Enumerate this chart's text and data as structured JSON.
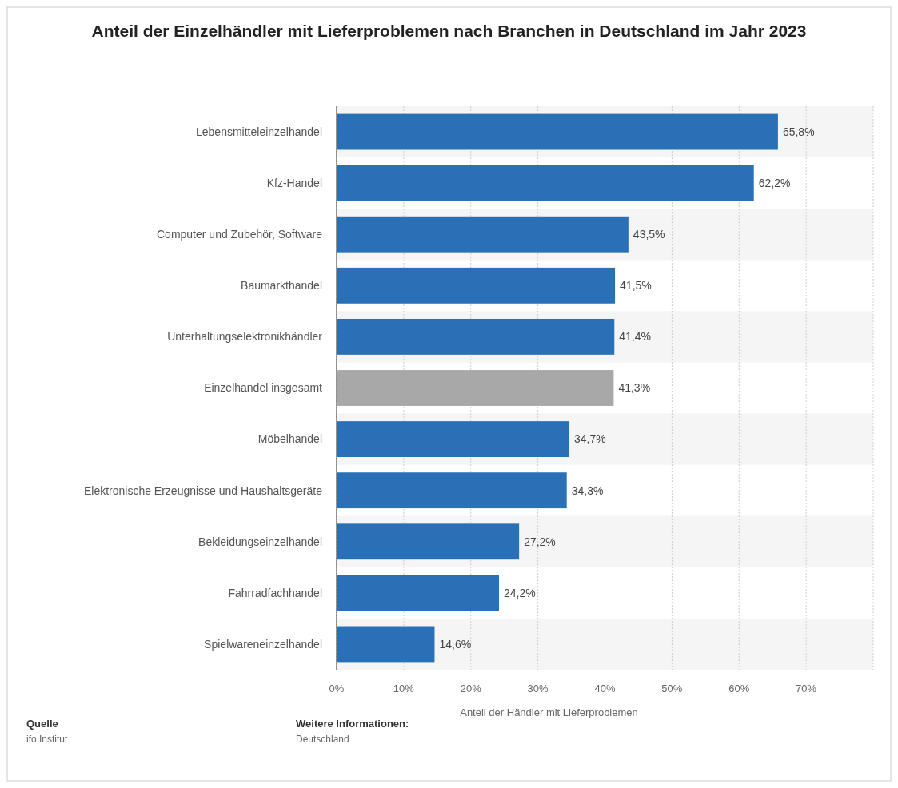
{
  "chart_data": {
    "type": "bar",
    "orientation": "horizontal",
    "title": "Anteil der Einzelhändler mit Lieferproblemen nach Branchen in Deutschland im Jahr 2023",
    "xlabel": "Anteil der Händler mit Lieferproblemen",
    "categories": [
      "Lebensmitteleinzelhandel",
      "Kfz-Handel",
      "Computer und Zubehör, Software",
      "Baumarkthandel",
      "Unterhaltungselektronikhändler",
      "Einzelhandel insgesamt",
      "Möbelhandel",
      "Elektronische Erzeugnisse und Haushaltsgeräte",
      "Bekleidungseinzelhandel",
      "Fahrradfachhandel",
      "Spielwareneinzelhandel"
    ],
    "values": [
      65.8,
      62.2,
      43.5,
      41.5,
      41.4,
      41.3,
      34.7,
      34.3,
      27.2,
      24.2,
      14.6
    ],
    "value_labels": [
      "65,8%",
      "62,2%",
      "43,5%",
      "41,5%",
      "41,4%",
      "41,3%",
      "34,7%",
      "34,3%",
      "27,2%",
      "24,2%",
      "14,6%"
    ],
    "colors": [
      "#2970b7",
      "#2970b7",
      "#2970b7",
      "#2970b7",
      "#2970b7",
      "#a8a8a8",
      "#2970b7",
      "#2970b7",
      "#2970b7",
      "#2970b7",
      "#2970b7"
    ],
    "xlim": [
      0,
      80
    ],
    "xticks": [
      {
        "value": 0,
        "label": "0%"
      },
      {
        "value": 10,
        "label": "10%"
      },
      {
        "value": 20,
        "label": "20%"
      },
      {
        "value": 30,
        "label": "30%"
      },
      {
        "value": 40,
        "label": "40%"
      },
      {
        "value": 50,
        "label": "50%"
      },
      {
        "value": 60,
        "label": "60%"
      },
      {
        "value": 70,
        "label": "70%"
      },
      {
        "value": 80,
        "label": null
      }
    ],
    "grid": "x",
    "annotations": [
      "Quelle",
      "ifo Institut",
      "Weitere Informationen:",
      "Deutschland"
    ]
  }
}
